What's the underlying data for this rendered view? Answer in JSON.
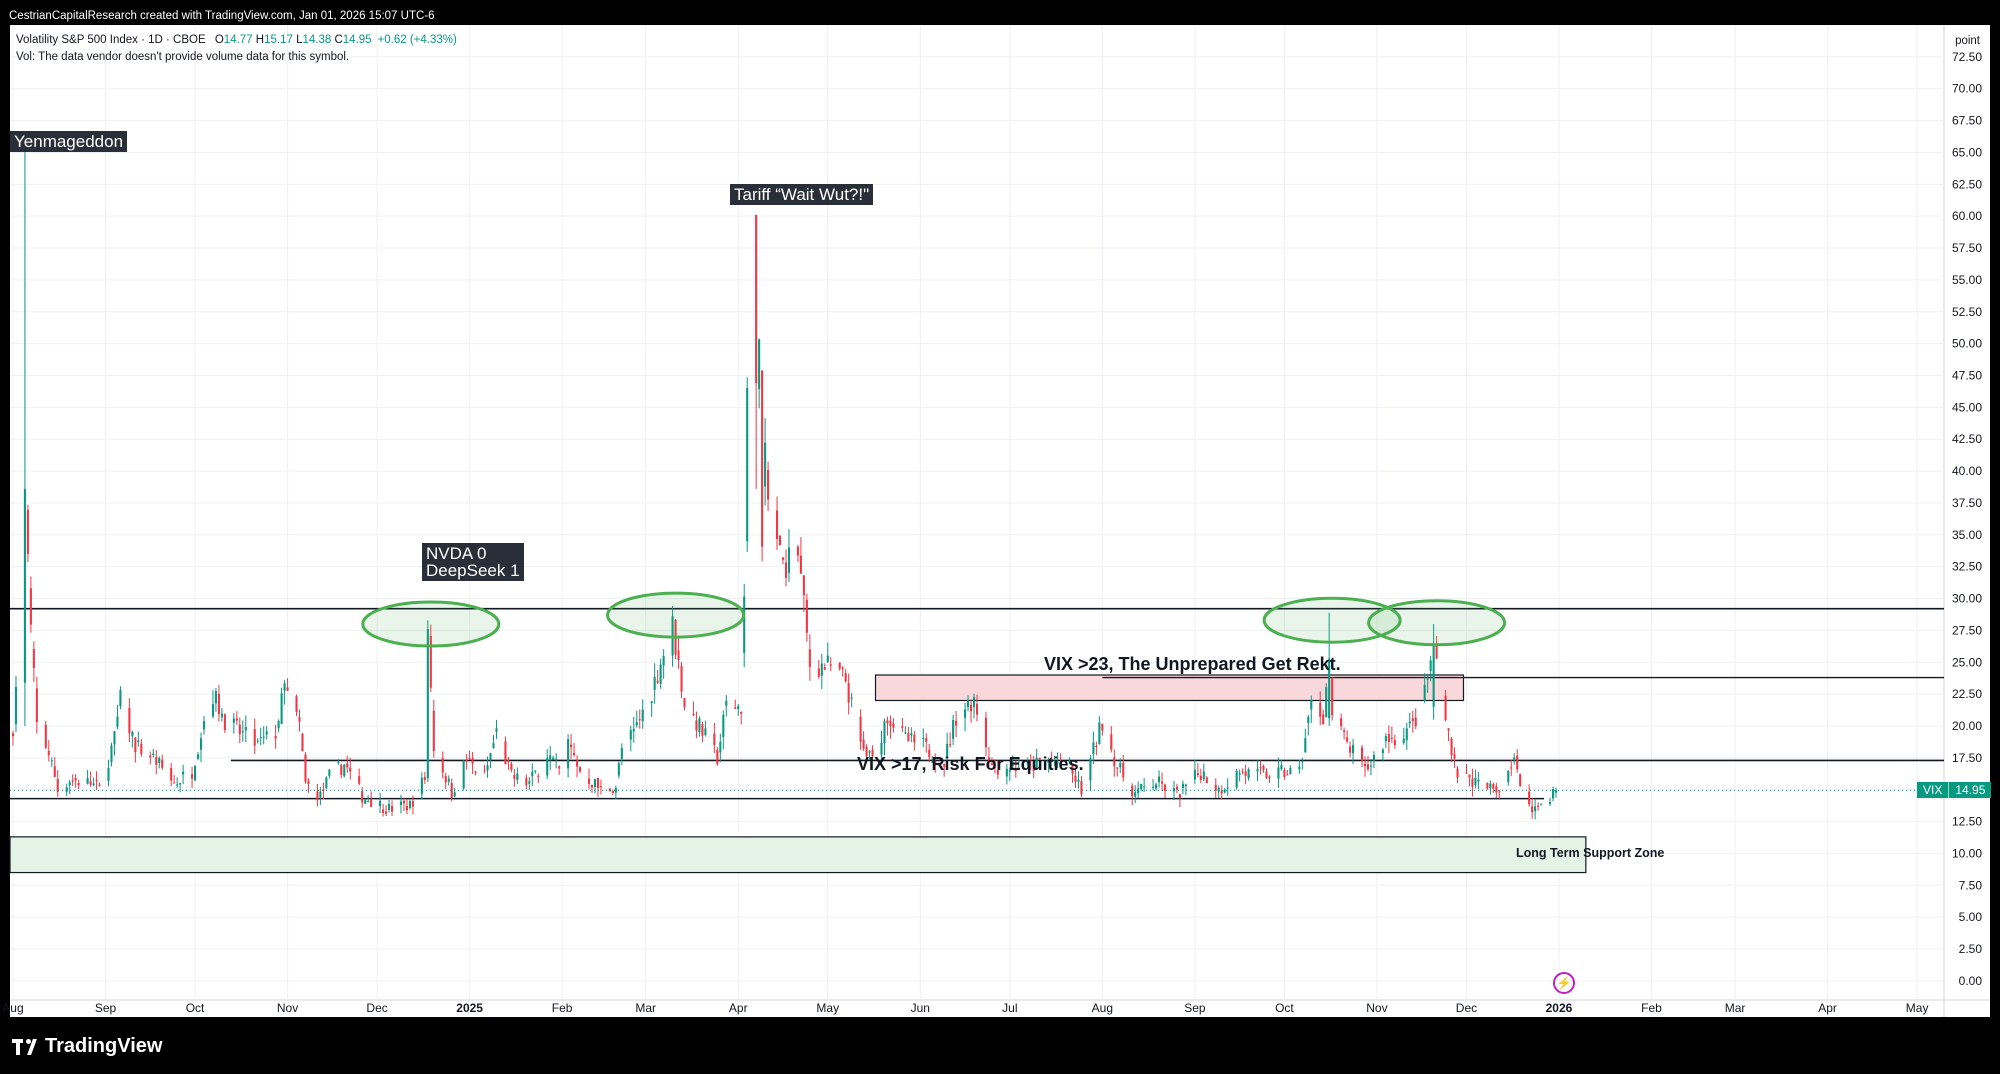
{
  "header": {
    "created_by": "CestrianCapitalResearch created with TradingView.com, Jan 01, 2026 15:07 UTC-6"
  },
  "legend": {
    "symbol_line": "Volatility S&P 500 Index · 1D · CBOE",
    "open_label": "O",
    "open": "14.77",
    "high_label": "H",
    "high": "15.17",
    "low_label": "L",
    "low": "14.38",
    "close_label": "C",
    "close": "14.95",
    "change": "+0.62 (+4.33%)",
    "volume_note": "Vol: The data vendor doesn't provide volume data for this symbol."
  },
  "price_axis": {
    "unit": "point"
  },
  "last_price": {
    "symbol": "VIX",
    "value": "14.95",
    "color": "#089981"
  },
  "colors": {
    "up": "#089981",
    "down": "#f23645",
    "grid": "#eef0f3",
    "zone_green": "#e3f3e6",
    "zone_red": "#f9d8dc",
    "ellipse": "#4caf50"
  },
  "annotations": {
    "yenmageddon": "Yenmageddon",
    "tariff": "Tariff “Wait Wut?!\"",
    "nvda_line1": "NVDA 0",
    "nvda_line2": "DeepSeek 1",
    "vix23": "VIX >23, The Unprepared Get Rekt.",
    "vix17": "VIX >17, Risk For Equities.",
    "support_zone": "Long Term Support Zone"
  },
  "footer": {
    "brand": "TradingView"
  },
  "chart_data": {
    "type": "candlestick",
    "title": "Volatility S&P 500 Index · 1D · CBOE",
    "y_ticks": [
      0,
      2.5,
      5,
      7.5,
      10,
      12.5,
      15,
      17.5,
      20,
      22.5,
      25,
      27.5,
      30,
      32.5,
      35,
      37.5,
      40,
      42.5,
      45,
      47.5,
      50,
      52.5,
      55,
      57.5,
      60,
      62.5,
      65,
      67.5,
      70,
      72.5
    ],
    "ylim": [
      -1.5,
      75
    ],
    "x_tick_labels": [
      "Aug",
      "Sep",
      "Oct",
      "Nov",
      "Dec",
      "2025",
      "Feb",
      "Mar",
      "Apr",
      "May",
      "Jun",
      "Jul",
      "Aug",
      "Sep",
      "Oct",
      "Nov",
      "Dec",
      "2026",
      "Feb",
      "Mar",
      "Apr",
      "May"
    ],
    "x_tick_dates": [
      "2024-08-01",
      "2024-09-01",
      "2024-10-01",
      "2024-11-01",
      "2024-12-01",
      "2025-01-01",
      "2025-02-01",
      "2025-03-01",
      "2025-04-01",
      "2025-05-01",
      "2025-06-01",
      "2025-07-01",
      "2025-08-01",
      "2025-09-01",
      "2025-10-01",
      "2025-11-01",
      "2025-12-01",
      "2026-01-01",
      "2026-02-01",
      "2026-03-01",
      "2026-04-01",
      "2026-05-01"
    ],
    "x_range": [
      "2024-07-31",
      "2026-05-10"
    ],
    "horizontal_levels": [
      {
        "value": 29.2,
        "start": "2024-07-31",
        "end": "2026-05-10"
      },
      {
        "value": 17.3,
        "start": "2024-10-13",
        "end": "2026-05-10"
      },
      {
        "value": 14.3,
        "start": "2024-07-31",
        "end": "2025-12-27"
      }
    ],
    "zones": [
      {
        "label": "VIX >23, The Unprepared Get Rekt.",
        "low": 22.0,
        "high": 24.0,
        "start": "2025-05-17",
        "end": "2025-11-30",
        "color": "#f9d8dc"
      },
      {
        "label": "Long Term Support Zone",
        "low": 8.5,
        "high": 11.3,
        "start": "2024-07-31",
        "end": "2026-01-10",
        "color": "#e3f3e6"
      }
    ],
    "right_level_23": {
      "value": 23.8,
      "start": "2025-08-01",
      "end": "2026-05-10"
    },
    "highlights": [
      {
        "center": "2024-12-19",
        "value": 28.0
      },
      {
        "center": "2025-03-11",
        "value": 28.7
      },
      {
        "center": "2025-10-17",
        "value": 28.3
      },
      {
        "center": "2025-11-21",
        "value": 28.1
      }
    ],
    "key_points": [
      [
        "2024-07-31",
        17.0
      ],
      [
        "2024-08-02",
        23.0
      ],
      [
        "2024-08-05",
        38.5
      ],
      [
        "2024-08-07",
        27.5
      ],
      [
        "2024-08-09",
        20.0
      ],
      [
        "2024-08-13",
        18.0
      ],
      [
        "2024-08-16",
        15.0
      ],
      [
        "2024-08-20",
        15.8
      ],
      [
        "2024-08-27",
        15.5
      ],
      [
        "2024-08-30",
        15.0
      ],
      [
        "2024-09-04",
        19.0
      ],
      [
        "2024-09-06",
        22.0
      ],
      [
        "2024-09-11",
        18.5
      ],
      [
        "2024-09-17",
        17.5
      ],
      [
        "2024-09-24",
        15.5
      ],
      [
        "2024-09-30",
        16.5
      ],
      [
        "2024-10-04",
        20.5
      ],
      [
        "2024-10-07",
        22.5
      ],
      [
        "2024-10-11",
        20.5
      ],
      [
        "2024-10-16",
        19.5
      ],
      [
        "2024-10-22",
        18.5
      ],
      [
        "2024-10-28",
        19.5
      ],
      [
        "2024-10-31",
        23.0
      ],
      [
        "2024-11-05",
        20.0
      ],
      [
        "2024-11-07",
        15.5
      ],
      [
        "2024-11-12",
        14.5
      ],
      [
        "2024-11-15",
        16.0
      ],
      [
        "2024-11-20",
        17.0
      ],
      [
        "2024-11-26",
        14.5
      ],
      [
        "2024-12-05",
        13.5
      ],
      [
        "2024-12-12",
        13.8
      ],
      [
        "2024-12-17",
        15.9
      ],
      [
        "2024-12-18",
        27.6
      ],
      [
        "2024-12-20",
        18.4
      ],
      [
        "2024-12-26",
        14.8
      ],
      [
        "2024-12-31",
        17.3
      ],
      [
        "2025-01-06",
        16.0
      ],
      [
        "2025-01-10",
        19.5
      ],
      [
        "2025-01-15",
        16.0
      ],
      [
        "2025-01-21",
        15.5
      ],
      [
        "2025-01-27",
        17.9
      ],
      [
        "2025-01-31",
        16.4
      ],
      [
        "2025-02-03",
        18.6
      ],
      [
        "2025-02-07",
        16.5
      ],
      [
        "2025-02-14",
        15.0
      ],
      [
        "2025-02-19",
        15.3
      ],
      [
        "2025-02-21",
        18.2
      ],
      [
        "2025-02-25",
        19.4
      ],
      [
        "2025-03-03",
        22.8
      ],
      [
        "2025-03-10",
        27.9
      ],
      [
        "2025-03-14",
        21.8
      ],
      [
        "2025-03-19",
        19.9
      ],
      [
        "2025-03-25",
        17.5
      ],
      [
        "2025-03-28",
        21.7
      ],
      [
        "2025-04-02",
        21.5
      ],
      [
        "2025-04-03",
        30.0
      ],
      [
        "2025-04-04",
        45.3
      ],
      [
        "2025-04-07",
        46.9
      ],
      [
        "2025-04-08",
        52.3
      ],
      [
        "2025-04-09",
        33.6
      ],
      [
        "2025-04-10",
        40.7
      ],
      [
        "2025-04-11",
        37.6
      ],
      [
        "2025-04-16",
        32.6
      ],
      [
        "2025-04-21",
        33.8
      ],
      [
        "2025-04-25",
        24.8
      ],
      [
        "2025-05-01",
        24.7
      ],
      [
        "2025-05-07",
        23.6
      ],
      [
        "2025-05-12",
        18.4
      ],
      [
        "2025-05-16",
        17.2
      ],
      [
        "2025-05-21",
        20.9
      ],
      [
        "2025-05-27",
        18.9
      ],
      [
        "2025-06-02",
        18.4
      ],
      [
        "2025-06-09",
        17.2
      ],
      [
        "2025-06-13",
        20.8
      ],
      [
        "2025-06-19",
        22.2
      ],
      [
        "2025-06-25",
        16.8
      ],
      [
        "2025-07-01",
        16.8
      ],
      [
        "2025-07-08",
        16.8
      ],
      [
        "2025-07-15",
        17.4
      ],
      [
        "2025-07-21",
        16.6
      ],
      [
        "2025-07-25",
        14.9
      ],
      [
        "2025-08-01",
        20.4
      ],
      [
        "2025-08-06",
        16.8
      ],
      [
        "2025-08-12",
        14.7
      ],
      [
        "2025-08-19",
        15.6
      ],
      [
        "2025-08-26",
        14.6
      ],
      [
        "2025-09-03",
        16.4
      ],
      [
        "2025-09-09",
        15.0
      ],
      [
        "2025-09-16",
        16.4
      ],
      [
        "2025-09-22",
        16.1
      ],
      [
        "2025-09-30",
        16.3
      ],
      [
        "2025-10-06",
        16.4
      ],
      [
        "2025-10-10",
        21.7
      ],
      [
        "2025-10-14",
        20.8
      ],
      [
        "2025-10-16",
        25.3
      ],
      [
        "2025-10-17",
        20.8
      ],
      [
        "2025-10-22",
        18.6
      ],
      [
        "2025-10-28",
        16.4
      ],
      [
        "2025-11-04",
        19.0
      ],
      [
        "2025-11-07",
        19.1
      ],
      [
        "2025-11-13",
        20.0
      ],
      [
        "2025-11-17",
        22.4
      ],
      [
        "2025-11-20",
        26.4
      ],
      [
        "2025-11-24",
        20.5
      ],
      [
        "2025-11-28",
        16.4
      ],
      [
        "2025-12-05",
        15.4
      ],
      [
        "2025-12-11",
        14.9
      ],
      [
        "2025-12-17",
        17.6
      ],
      [
        "2025-12-19",
        14.9
      ],
      [
        "2025-12-24",
        13.5
      ],
      [
        "2025-12-31",
        14.95
      ]
    ],
    "candles": [
      {
        "date": "2024-08-05",
        "open": 23.4,
        "high": 65.7,
        "low": 20.0,
        "close": 38.6
      },
      {
        "date": "2024-12-18",
        "open": 15.9,
        "high": 28.3,
        "low": 15.6,
        "close": 27.6
      },
      {
        "date": "2025-04-07",
        "open": 60.1,
        "high": 60.1,
        "low": 38.6,
        "close": 46.9
      },
      {
        "date": "2025-10-16",
        "open": 20.6,
        "high": 28.9,
        "low": 20.0,
        "close": 25.3
      },
      {
        "date": "2025-11-20",
        "open": 21.5,
        "high": 28.0,
        "low": 20.5,
        "close": 26.4
      },
      {
        "date": "2025-12-31",
        "open": 14.77,
        "high": 15.17,
        "low": 14.38,
        "close": 14.95
      }
    ]
  }
}
